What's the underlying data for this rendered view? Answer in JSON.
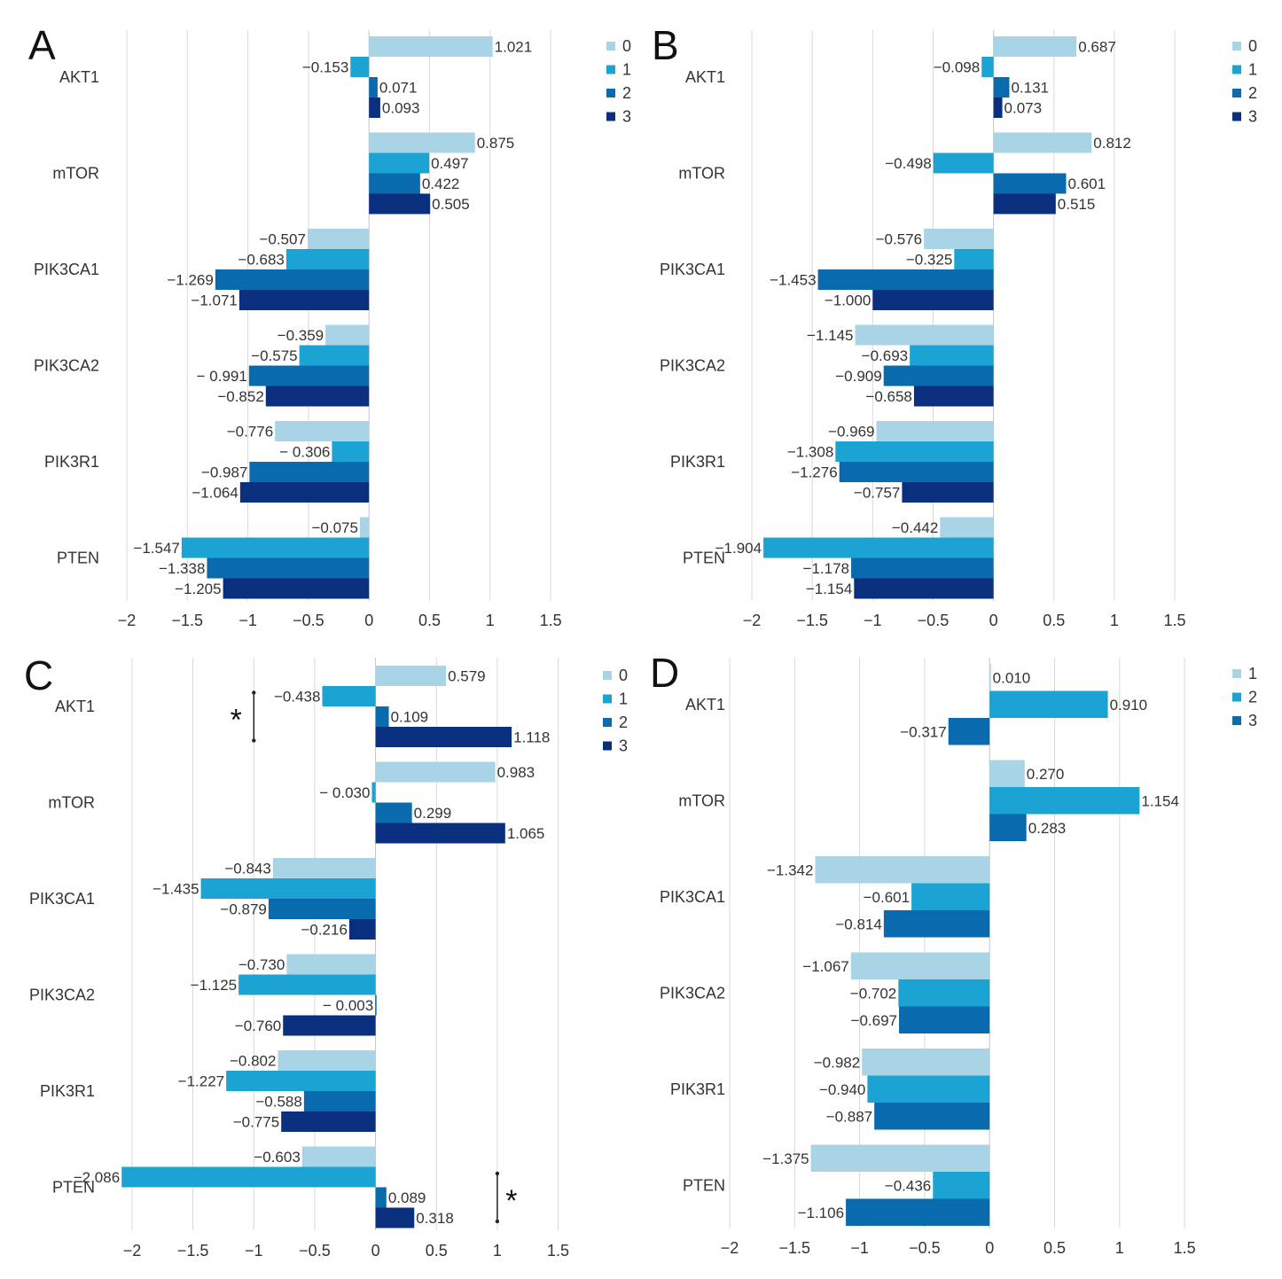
{
  "figure": {
    "description_none": ""
  },
  "colors": {
    "s0": "#a8d4e6",
    "s1": "#1ba3d3",
    "s2": "#0a6aae",
    "s3": "#0b2f7f",
    "grid": "#d9d9d9",
    "text": "#333333"
  },
  "chart_data": [
    {
      "panel": "A",
      "type": "bar",
      "orientation": "horizontal",
      "categories": [
        "AKT1",
        "mTOR",
        "PIK3CA1",
        "PIK3CA2",
        "PIK3R1",
        "PTEN"
      ],
      "series": [
        {
          "name": "0",
          "color_key": "s0",
          "values": [
            1.021,
            0.875,
            -0.507,
            -0.359,
            -0.776,
            -0.075
          ],
          "labels": [
            "1.021",
            "0.875",
            "−0.507",
            "−0.359",
            "−0.776",
            "−0.075"
          ]
        },
        {
          "name": "1",
          "color_key": "s1",
          "values": [
            -0.153,
            0.497,
            -0.683,
            -0.575,
            -0.306,
            -1.547
          ],
          "labels": [
            "−0.153",
            "0.497",
            "−0.683",
            "−0.575",
            "− 0.306",
            "−1.547"
          ]
        },
        {
          "name": "2",
          "color_key": "s2",
          "values": [
            0.071,
            0.422,
            -1.269,
            -0.991,
            -0.987,
            -1.338
          ],
          "labels": [
            "0.071",
            "0.422",
            "−1.269",
            "− 0.991",
            "−0.987",
            "−1.338"
          ]
        },
        {
          "name": "3",
          "color_key": "s3",
          "values": [
            0.093,
            0.505,
            -1.071,
            -0.852,
            -1.064,
            -1.205
          ],
          "labels": [
            "0.093",
            "0.505",
            "−1.071",
            "−0.852",
            "−1.064",
            "−1.205"
          ]
        }
      ],
      "xlim": [
        -2,
        1.5
      ],
      "ticks": [
        "−2",
        "−1.5",
        "−1",
        "−0.5",
        "0",
        "0.5",
        "1",
        "1.5"
      ],
      "tick_values": [
        -2,
        -1.5,
        -1,
        -0.5,
        0,
        0.5,
        1,
        1.5
      ],
      "legend": [
        "0",
        "1",
        "2",
        "3"
      ],
      "legend_position": "top-right",
      "grid": true,
      "annotations": []
    },
    {
      "panel": "B",
      "type": "bar",
      "orientation": "horizontal",
      "categories": [
        "AKT1",
        "mTOR",
        "PIK3CA1",
        "PIK3CA2",
        "PIK3R1",
        "PTEN"
      ],
      "series": [
        {
          "name": "0",
          "color_key": "s0",
          "values": [
            0.687,
            0.812,
            -0.576,
            -1.145,
            -0.969,
            -0.442
          ],
          "labels": [
            "0.687",
            "0.812",
            "−0.576",
            "−1.145",
            "−0.969",
            "−0.442"
          ]
        },
        {
          "name": "1",
          "color_key": "s1",
          "values": [
            -0.098,
            -0.498,
            -0.325,
            -0.693,
            -1.308,
            -1.904
          ],
          "labels": [
            "−0.098",
            "−0.498",
            "−0.325",
            "−0.693",
            "−1.308",
            "−1.904"
          ]
        },
        {
          "name": "2",
          "color_key": "s2",
          "values": [
            0.131,
            0.601,
            -1.453,
            -0.909,
            -1.276,
            -1.178
          ],
          "labels": [
            "0.131",
            "0.601",
            "−1.453",
            "−0.909",
            "−1.276",
            "−1.178"
          ]
        },
        {
          "name": "3",
          "color_key": "s3",
          "values": [
            0.073,
            0.515,
            -1.0,
            -0.658,
            -0.757,
            -1.154
          ],
          "labels": [
            "0.073",
            "0.515",
            "−1.000",
            "−0.658",
            "−0.757",
            "−1.154"
          ]
        }
      ],
      "xlim": [
        -2,
        1.5
      ],
      "ticks": [
        "−2",
        "−1.5",
        "−1",
        "−0.5",
        "0",
        "0.5",
        "1",
        "1.5"
      ],
      "tick_values": [
        -2,
        -1.5,
        -1,
        -0.5,
        0,
        0.5,
        1,
        1.5
      ],
      "legend": [
        "0",
        "1",
        "2",
        "3"
      ],
      "legend_position": "top-right",
      "grid": true,
      "annotations": []
    },
    {
      "panel": "C",
      "type": "bar",
      "orientation": "horizontal",
      "categories": [
        "AKT1",
        "mTOR",
        "PIK3CA1",
        "PIK3CA2",
        "PIK3R1",
        "PTEN"
      ],
      "series": [
        {
          "name": "0",
          "color_key": "s0",
          "values": [
            0.579,
            0.983,
            -0.843,
            -0.73,
            -0.802,
            -0.603
          ],
          "labels": [
            "0.579",
            "0.983",
            "−0.843",
            "−0.730",
            "−0.802",
            "−0.603"
          ]
        },
        {
          "name": "1",
          "color_key": "s1",
          "values": [
            -0.438,
            -0.03,
            -1.435,
            -1.125,
            -1.227,
            -2.086
          ],
          "labels": [
            "−0.438",
            "− 0.030",
            "−1.435",
            "−1.125",
            "−1.227",
            "−2.086"
          ]
        },
        {
          "name": "2",
          "color_key": "s2",
          "values": [
            0.109,
            0.299,
            -0.879,
            -0.003,
            -0.588,
            0.089
          ],
          "labels": [
            "0.109",
            "0.299",
            "−0.879",
            "− 0.003",
            "−0.588",
            "0.089"
          ]
        },
        {
          "name": "3",
          "color_key": "s3",
          "values": [
            1.118,
            1.065,
            -0.216,
            -0.76,
            -0.775,
            0.318
          ],
          "labels": [
            "1.118",
            "1.065",
            "−0.216",
            "−0.760",
            "−0.775",
            "0.318"
          ]
        }
      ],
      "xlim": [
        -2,
        1.5
      ],
      "ticks": [
        "−2",
        "−1.5",
        "−1",
        "−0.5",
        "0",
        "0.5",
        "1",
        "1.5"
      ],
      "tick_values": [
        -2,
        -1.5,
        -1,
        -0.5,
        0,
        0.5,
        1,
        1.5
      ],
      "legend": [
        "0",
        "1",
        "2",
        "3"
      ],
      "legend_position": "top-right",
      "grid": true,
      "annotations": [
        {
          "text": "*",
          "category": "AKT1",
          "from_series": 1,
          "to_series": 3,
          "at_value": -1.0,
          "side": "left"
        },
        {
          "text": "*",
          "category": "PTEN",
          "from_series": 1,
          "to_series": 3,
          "at_value": 1.0,
          "side": "right"
        }
      ]
    },
    {
      "panel": "D",
      "type": "bar",
      "orientation": "horizontal",
      "categories": [
        "AKT1",
        "mTOR",
        "PIK3CA1",
        "PIK3CA2",
        "PIK3R1",
        "PTEN"
      ],
      "series": [
        {
          "name": "1",
          "color_key": "s0",
          "values": [
            0.01,
            0.27,
            -1.342,
            -1.067,
            -0.982,
            -1.375
          ],
          "labels": [
            "0.010",
            "0.270",
            "−1.342",
            "−1.067",
            "−0.982",
            "−1.375"
          ]
        },
        {
          "name": "2",
          "color_key": "s1",
          "values": [
            0.91,
            1.154,
            -0.601,
            -0.702,
            -0.94,
            -0.436
          ],
          "labels": [
            "0.910",
            "1.154",
            "−0.601",
            "−0.702",
            "−0.940",
            "−0.436"
          ]
        },
        {
          "name": "3",
          "color_key": "s2",
          "values": [
            -0.317,
            0.283,
            -0.814,
            -0.697,
            -0.887,
            -1.106
          ],
          "labels": [
            "−0.317",
            "0.283",
            "−0.814",
            "−0.697",
            "−0.887",
            "−1.106"
          ]
        }
      ],
      "xlim": [
        -2,
        1.5
      ],
      "ticks": [
        "−2",
        "−1.5",
        "−1",
        "−0.5",
        "0",
        "0.5",
        "1",
        "1.5"
      ],
      "tick_values": [
        -2,
        -1.5,
        -1,
        -0.5,
        0,
        0.5,
        1,
        1.5
      ],
      "legend": [
        "1",
        "2",
        "3"
      ],
      "legend_position": "top-right",
      "grid": true,
      "annotations": []
    }
  ]
}
